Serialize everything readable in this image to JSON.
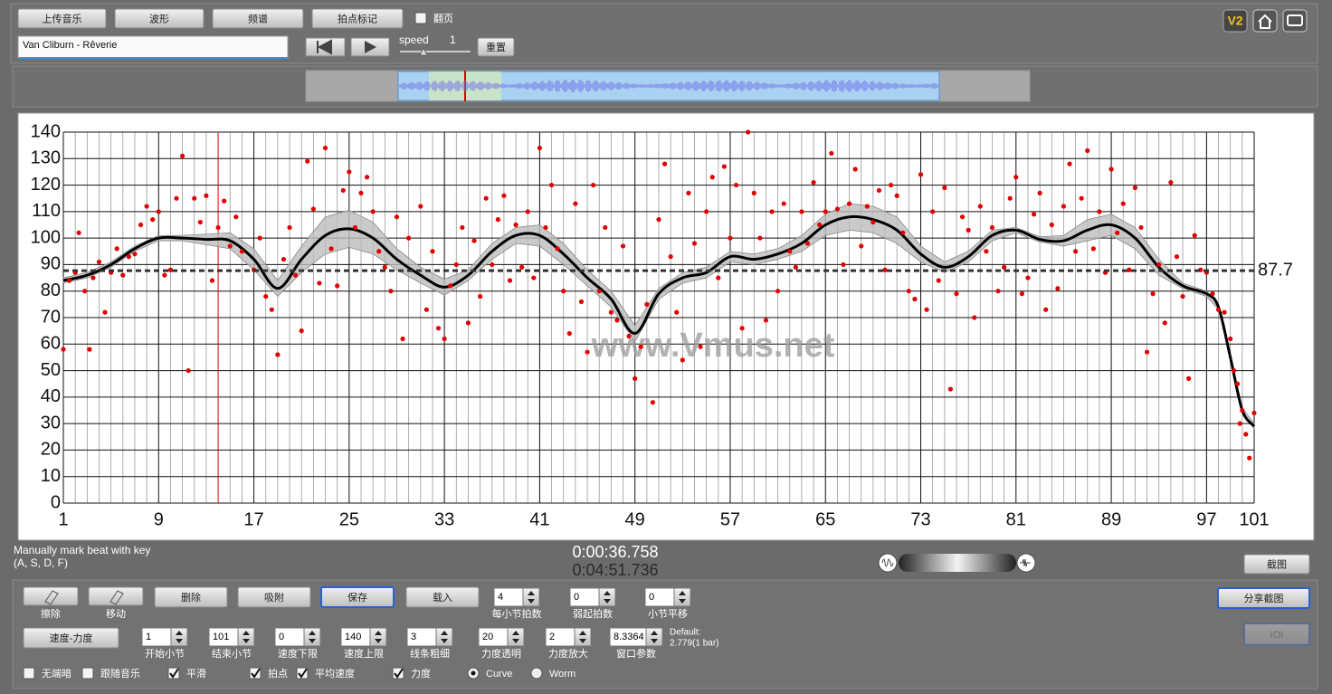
{
  "toolbar": {
    "buttons": [
      "上传音乐",
      "波形",
      "频谱",
      "拍点标记"
    ],
    "page_turn": "翻页",
    "track": "Van Cliburn - Rêverie",
    "speed_label": "speed",
    "speed": "1",
    "reset": "重置",
    "badge": "V2"
  },
  "chart_data": {
    "type": "scatter",
    "x": [
      1,
      1.5,
      2,
      2.3,
      2.8,
      3.2,
      3.5,
      4,
      4.5,
      5,
      5.5,
      6,
      6.5,
      7,
      7.5,
      8,
      8.5,
      9,
      9.5,
      10,
      10.5,
      11,
      11.5,
      12,
      12.5,
      13,
      13.5,
      14,
      14.5,
      15,
      15.5,
      16,
      17,
      17.5,
      18,
      18.5,
      19,
      19.5,
      20,
      20.5,
      21,
      21.5,
      22,
      22.5,
      23,
      23.5,
      24,
      24.5,
      25,
      25.5,
      26,
      26.5,
      27,
      27.5,
      28,
      28.5,
      29,
      29.5,
      30,
      31,
      31.5,
      32,
      32.5,
      33,
      33.5,
      34,
      34.5,
      35,
      35.5,
      36,
      36.5,
      37,
      37.5,
      38,
      38.5,
      39,
      39.5,
      40,
      40.5,
      41,
      41.5,
      42,
      42.5,
      43,
      43.5,
      44,
      44.5,
      45,
      45.5,
      46,
      46.5,
      47,
      47.5,
      48,
      48.5,
      49,
      49.5,
      50,
      50.5,
      51,
      51.5,
      52,
      52.5,
      53,
      53.5,
      54,
      54.5,
      55,
      55.5,
      56,
      56.5,
      57,
      57.5,
      58,
      58.5,
      59,
      59.5,
      60,
      60.5,
      61,
      61.5,
      62,
      62.5,
      63,
      63.5,
      64,
      64.5,
      65,
      65.5,
      66,
      66.5,
      67,
      67.5,
      68,
      68.5,
      69,
      69.5,
      70,
      70.5,
      71,
      71.5,
      72,
      72.5,
      73,
      73.5,
      74,
      74.5,
      75,
      75.5,
      76,
      76.5,
      77,
      77.5,
      78,
      78.5,
      79,
      79.5,
      80,
      80.5,
      81,
      81.5,
      82,
      82.5,
      83,
      83.5,
      84,
      84.5,
      85,
      85.5,
      86,
      86.5,
      87,
      87.5,
      88,
      88.5,
      89,
      89.5,
      90,
      90.5,
      91,
      91.5,
      92,
      92.5,
      93,
      93.5,
      94,
      94.5,
      95,
      95.5,
      96,
      96.5,
      97,
      97.5,
      98,
      98.5,
      99,
      99.3,
      99.6,
      99.8,
      100,
      100.3,
      100.6,
      101
    ],
    "values": [
      58,
      84,
      87,
      102,
      80,
      58,
      85,
      91,
      72,
      87,
      96,
      86,
      93,
      94,
      105,
      112,
      107,
      110,
      86,
      88,
      115,
      131,
      50,
      115,
      106,
      116,
      84,
      104,
      114,
      97,
      108,
      95,
      88,
      100,
      78,
      73,
      56,
      92,
      104,
      86,
      65,
      129,
      111,
      83,
      134,
      96,
      82,
      118,
      125,
      104,
      117,
      123,
      110,
      95,
      89,
      80,
      108,
      62,
      100,
      112,
      73,
      95,
      66,
      62,
      82,
      90,
      104,
      68,
      99,
      78,
      115,
      90,
      107,
      116,
      84,
      105,
      89,
      110,
      85,
      134,
      104,
      120,
      96,
      80,
      64,
      113,
      76,
      57,
      120,
      80,
      104,
      72,
      69,
      97,
      63,
      47,
      59,
      75,
      38,
      107,
      128,
      93,
      72,
      54,
      117,
      98,
      59,
      110,
      123,
      85,
      127,
      100,
      120,
      66,
      140,
      117,
      100,
      69,
      110,
      80,
      113,
      95,
      89,
      110,
      98,
      121,
      105,
      110,
      132,
      111,
      90,
      113,
      126,
      97,
      112,
      106,
      118,
      88,
      120,
      116,
      102,
      80,
      77,
      124,
      73,
      110,
      84,
      119,
      43,
      79,
      108,
      103,
      70,
      112,
      95,
      104,
      80,
      89,
      115,
      123,
      79,
      85,
      109,
      117,
      73,
      105,
      81,
      112,
      128,
      95,
      115,
      133,
      96,
      110,
      87,
      126,
      102,
      113,
      88,
      119,
      104,
      57,
      79,
      90,
      68,
      121,
      93,
      78,
      47,
      101,
      88,
      87,
      79,
      73,
      72,
      62,
      50,
      45,
      30,
      35,
      26,
      17,
      34
    ],
    "color": "#e00000",
    "xlim": [
      1,
      101
    ],
    "ylim": [
      0,
      140
    ],
    "xticks": [
      1,
      9,
      17,
      25,
      33,
      41,
      49,
      57,
      65,
      73,
      81,
      89,
      97,
      101
    ],
    "yticks": [
      0,
      10,
      20,
      30,
      40,
      50,
      60,
      70,
      80,
      90,
      100,
      110,
      120,
      130,
      140
    ],
    "grid": true,
    "minor_grid": true,
    "curve": {
      "x": [
        1,
        3,
        5,
        7,
        9,
        11,
        13,
        15,
        17,
        19,
        21,
        23,
        25,
        27,
        29,
        31,
        33,
        35,
        37,
        39,
        41,
        43,
        45,
        47,
        49,
        51,
        53,
        55,
        57,
        59,
        61,
        63,
        65,
        67,
        69,
        71,
        73,
        75,
        77,
        79,
        81,
        83,
        85,
        87,
        89,
        91,
        93,
        95,
        97,
        98,
        99,
        100,
        101
      ],
      "values": [
        84,
        86,
        90,
        96,
        100,
        100,
        99.5,
        99,
        92,
        81,
        92,
        101,
        103.5,
        100,
        92,
        86,
        81.5,
        86,
        95,
        101,
        101,
        94,
        85,
        77,
        64,
        79,
        85,
        87,
        93,
        92,
        94,
        98,
        105,
        108,
        107,
        103,
        94,
        89,
        93,
        101,
        103,
        99.5,
        99,
        103,
        105,
        100,
        89,
        82,
        79,
        74,
        55,
        35,
        29
      ],
      "spread": [
        1,
        1,
        1,
        1,
        1,
        1,
        2,
        3,
        4,
        3,
        5,
        7,
        7,
        6,
        4,
        3,
        3,
        2,
        3,
        3,
        4,
        4,
        3,
        3,
        3,
        2,
        2,
        2,
        2,
        2,
        2,
        3,
        4,
        5,
        5,
        5,
        3,
        2,
        2,
        2,
        1,
        1,
        2,
        4,
        4,
        4,
        3,
        1,
        1,
        1,
        1,
        1,
        1
      ],
      "color": "#000000",
      "band_color": "#bdbdbd"
    },
    "average": 87.7,
    "playhead": 14,
    "watermark": "www.Vmus.net"
  },
  "status": {
    "hint": [
      "Manually mark beat with key",
      "(A, S, D, F)"
    ],
    "position": "0:00:36.758",
    "duration": "0:04:51.736",
    "snapshot": "截图",
    "share": "分享截图"
  },
  "controls": {
    "tools": [
      "擦除",
      "移动"
    ],
    "buttons": [
      "删除",
      "吸附",
      "保存",
      "载入"
    ],
    "row1": [
      {
        "value": "4",
        "label": "每小节拍数"
      },
      {
        "value": "0",
        "label": "弱起拍数"
      },
      {
        "value": "0",
        "label": "小节平移"
      }
    ],
    "mode": "速度-力度",
    "row2": [
      {
        "value": "1",
        "label": "开始小节"
      },
      {
        "value": "101",
        "label": "结束小节"
      },
      {
        "value": "0",
        "label": "速度下限"
      },
      {
        "value": "140",
        "label": "速度上限"
      },
      {
        "value": "3",
        "label": "线条粗细"
      },
      {
        "value": "20",
        "label": "力度透明"
      },
      {
        "value": "2",
        "label": "力度放大"
      },
      {
        "value": "8.3364",
        "label": "窗口参数"
      }
    ],
    "default": [
      "Default:",
      "2.779(1 bar)"
    ],
    "ioi": "IOI",
    "checks": [
      {
        "label": "无端暗",
        "checked": false
      },
      {
        "label": "跟随音乐",
        "checked": false
      },
      {
        "label": "平滑",
        "checked": true
      },
      {
        "label": "拍点",
        "checked": true
      },
      {
        "label": "平均速度",
        "checked": true
      },
      {
        "label": "力度",
        "checked": true
      }
    ],
    "radios": [
      {
        "label": "Curve",
        "checked": true
      },
      {
        "label": "Worm",
        "checked": false
      }
    ]
  }
}
